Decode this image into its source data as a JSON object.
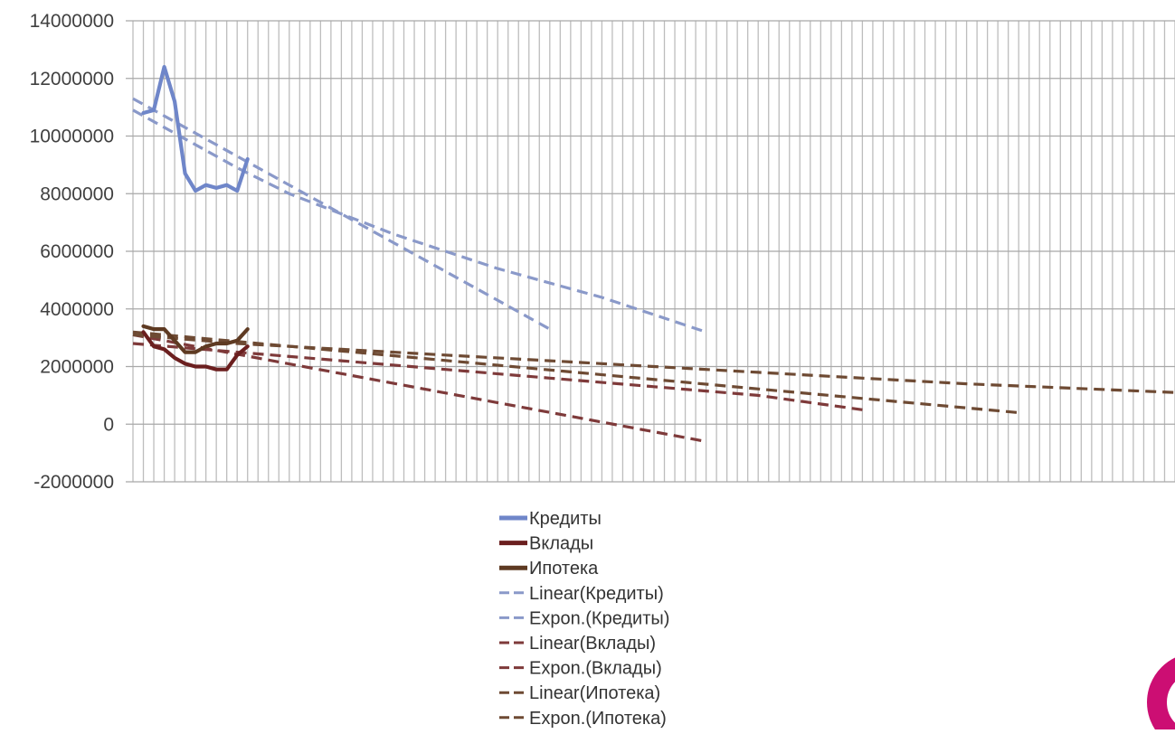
{
  "chart_data": {
    "type": "line",
    "ylim": [
      -2000000,
      14000000
    ],
    "y_ticks": [
      -2000000,
      0,
      2000000,
      4000000,
      6000000,
      8000000,
      10000000,
      12000000,
      14000000
    ],
    "y_tick_labels": [
      "-2000000",
      "0",
      "2000000",
      "4000000",
      "6000000",
      "8000000",
      "10000000",
      "12000000",
      "14000000"
    ],
    "x_range": [
      0,
      100
    ],
    "grid": {
      "vertical": true,
      "horizontal": true,
      "vertical_count": 100
    },
    "legend": {
      "placement": "bottom"
    },
    "series": [
      {
        "name": "Кредиты",
        "kind": "solid",
        "color": "#6F86C9",
        "x": [
          1,
          2,
          3,
          4,
          5,
          6,
          7,
          8,
          9,
          10,
          11
        ],
        "values": [
          10800000,
          10900000,
          12400000,
          11200000,
          8700000,
          8100000,
          8300000,
          8200000,
          8300000,
          8100000,
          9200000
        ]
      },
      {
        "name": "Вклады",
        "kind": "solid",
        "color": "#6B1F1F",
        "x": [
          1,
          2,
          3,
          4,
          5,
          6,
          7,
          8,
          9,
          10,
          11
        ],
        "values": [
          3200000,
          2700000,
          2600000,
          2300000,
          2100000,
          2000000,
          2000000,
          1900000,
          1900000,
          2400000,
          2700000
        ]
      },
      {
        "name": "Ипотека",
        "kind": "solid",
        "color": "#5E3A22",
        "x": [
          1,
          2,
          3,
          4,
          5,
          6,
          7,
          8,
          9,
          10,
          11
        ],
        "values": [
          3400000,
          3300000,
          3300000,
          2900000,
          2500000,
          2500000,
          2700000,
          2800000,
          2800000,
          2900000,
          3300000
        ]
      },
      {
        "name": "Linear(Кредиты)",
        "kind": "dashed",
        "color": "#8A99C9",
        "x": [
          0,
          40
        ],
        "values": [
          11300000,
          3300000
        ]
      },
      {
        "name": "Expon.(Кредиты)",
        "kind": "dashed",
        "color": "#8A99C9",
        "x": [
          0,
          5,
          10,
          15,
          20,
          25,
          30,
          35,
          40,
          45,
          50,
          55
        ],
        "values": [
          10900000,
          9900000,
          8900000,
          8000000,
          7300000,
          6600000,
          6000000,
          5400000,
          4900000,
          4400000,
          3800000,
          3200000
        ]
      },
      {
        "name": "Linear(Вклады)",
        "kind": "dashed",
        "color": "#7E3A3A",
        "x": [
          0,
          55
        ],
        "values": [
          3100000,
          -600000
        ]
      },
      {
        "name": "Expon.(Вклады)",
        "kind": "dashed",
        "color": "#7E3A3A",
        "x": [
          0,
          10,
          20,
          30,
          40,
          50,
          60,
          70
        ],
        "values": [
          2800000,
          2500000,
          2200000,
          1900000,
          1600000,
          1300000,
          1000000,
          500000
        ]
      },
      {
        "name": "Linear(Ипотека)",
        "kind": "dashed",
        "color": "#6E4A33",
        "x": [
          0,
          85
        ],
        "values": [
          3200000,
          400000
        ]
      },
      {
        "name": "Expon.(Ипотека)",
        "kind": "dashed",
        "color": "#6E4A33",
        "x": [
          0,
          10,
          20,
          30,
          40,
          50,
          60,
          70,
          80,
          90,
          100
        ],
        "values": [
          3100000,
          2800000,
          2600000,
          2400000,
          2200000,
          2000000,
          1800000,
          1600000,
          1400000,
          1250000,
          1100000
        ]
      }
    ]
  }
}
